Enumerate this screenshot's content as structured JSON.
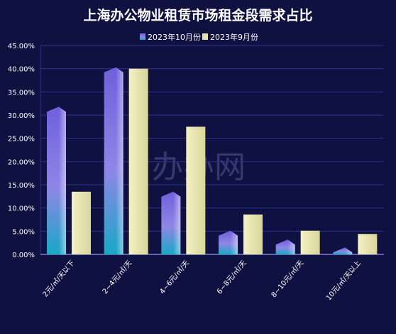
{
  "chart_data": {
    "type": "bar",
    "title": "上海办公物业租赁市场租金段需求占比",
    "categories": [
      "2元/㎡/天以下",
      "2~4元/㎡/天",
      "4~6元/㎡/天",
      "6~8元/㎡/天",
      "8~10元/㎡/天",
      "10元/㎡/天以上"
    ],
    "series": [
      {
        "name": "2023年10月份",
        "values": [
          31.8,
          40.3,
          13.5,
          5.1,
          3.2,
          1.5
        ]
      },
      {
        "name": "2023年9月份",
        "values": [
          13.5,
          40.0,
          27.5,
          8.6,
          5.1,
          4.4
        ]
      }
    ],
    "ylim": [
      0,
      45
    ],
    "yticks": [
      "0.00%",
      "5.00%",
      "10.00%",
      "15.00%",
      "20.00%",
      "25.00%",
      "30.00%",
      "35.00%",
      "40.00%",
      "45.00%"
    ],
    "grid": true,
    "legend_position": "top-center",
    "watermark": "办办网",
    "colors": {
      "background": "#0f1140",
      "grid": "#2b3190",
      "series1_top": "#6a5ad6",
      "series1_bottom": "#1aa6c8",
      "series2": "#e6e3a6"
    }
  }
}
